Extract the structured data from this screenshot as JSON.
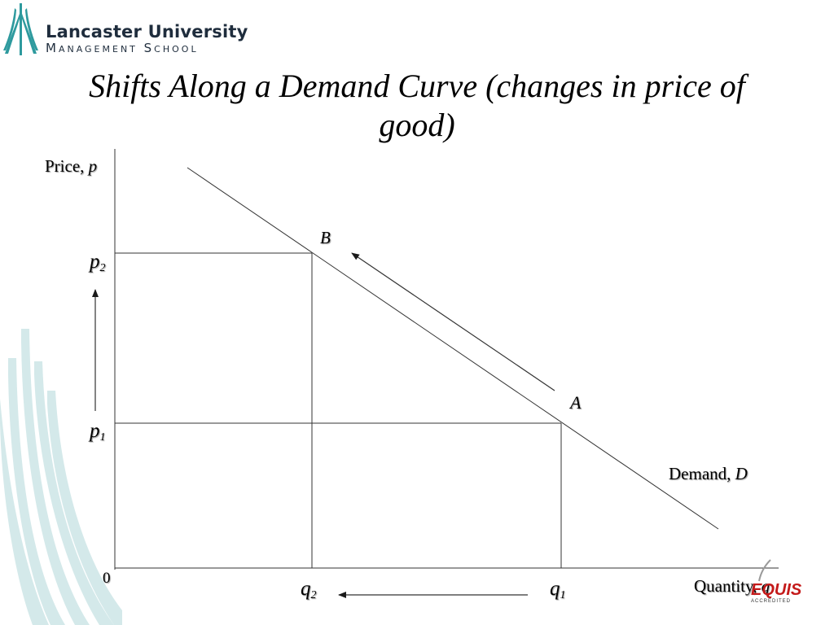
{
  "logo": {
    "name": "Lancaster University",
    "subtitle": "Management School"
  },
  "title": "Shifts Along a Demand Curve (changes in price of good)",
  "axes": {
    "y_label": "Price, ",
    "y_symbol": "p",
    "x_label": "Quantity, ",
    "x_symbol": "q",
    "origin": "0"
  },
  "curve": {
    "label": "Demand, ",
    "symbol": "D"
  },
  "points": {
    "a": "A",
    "b": "B"
  },
  "price_ticks": {
    "p2_base": "p",
    "p2_sub": "2",
    "p1_base": "p",
    "p1_sub": "1"
  },
  "quantity_ticks": {
    "q2_base": "q",
    "q2_sub": "2",
    "q1_base": "q",
    "q1_sub": "1"
  },
  "badge": {
    "name": "EQUIS",
    "sub": "ACCREDITED"
  },
  "colors": {
    "decor": "#d4e9ea",
    "logo_teal": "#2e9a9e",
    "badge_red": "#c41a1a"
  }
}
